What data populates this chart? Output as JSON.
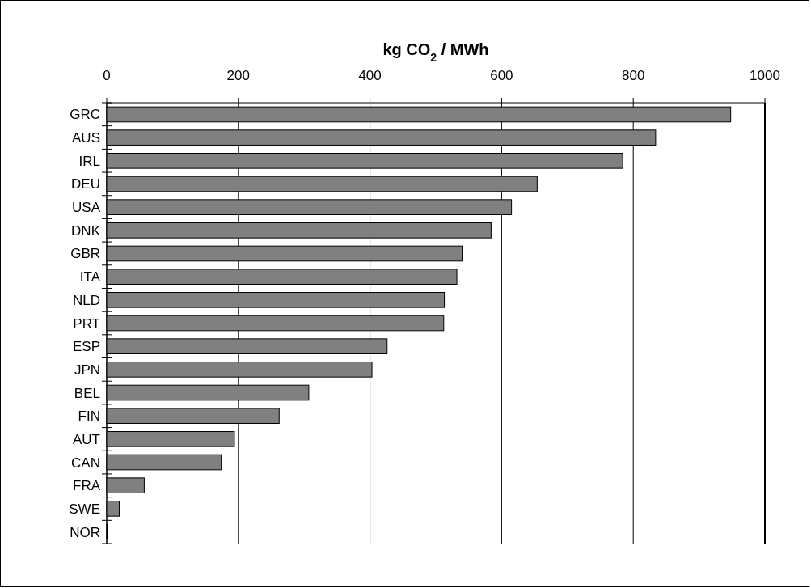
{
  "chart_data": {
    "type": "bar",
    "orientation": "horizontal",
    "xlabel": "kg CO$_{2}$ / MWh",
    "categories": [
      "GRC",
      "AUS",
      "IRL",
      "DEU",
      "USA",
      "DNK",
      "GBR",
      "ITA",
      "NLD",
      "PRT",
      "ESP",
      "JPN",
      "BEL",
      "FIN",
      "AUT",
      "CAN",
      "FRA",
      "SWE",
      "NOR"
    ],
    "values": [
      948,
      834,
      784,
      654,
      615,
      584,
      540,
      532,
      513,
      512,
      426,
      403,
      307,
      262,
      194,
      174,
      57,
      19,
      1
    ],
    "color": "#808080",
    "xlim": [
      0,
      1000
    ],
    "xticks": [
      0,
      200,
      400,
      600,
      800,
      1000
    ],
    "grid": "x"
  }
}
